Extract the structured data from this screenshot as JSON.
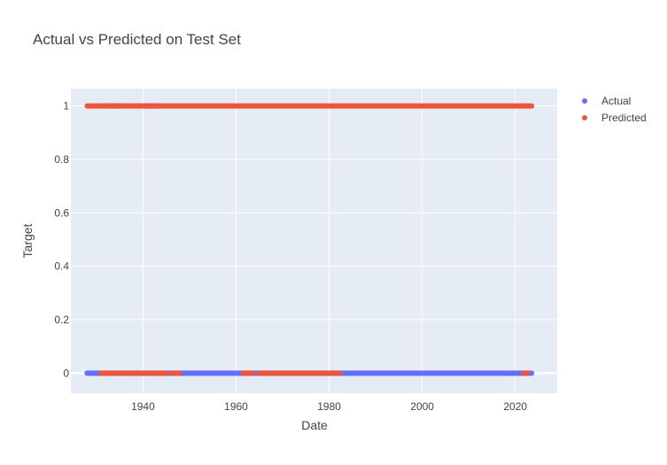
{
  "chart_data": {
    "type": "scatter",
    "title": "Actual vs Predicted on Test Set",
    "xlabel": "Date",
    "ylabel": "Target",
    "xlim": [
      1924.5,
      2029
    ],
    "ylim": [
      -0.075,
      1.065
    ],
    "x_ticks": [
      1940,
      1960,
      1980,
      2000,
      2020
    ],
    "x_tick_labels": [
      "1940",
      "1960",
      "1980",
      "2000",
      "2020"
    ],
    "y_ticks": [
      0,
      0.2,
      0.4,
      0.6,
      0.8,
      1
    ],
    "y_tick_labels": [
      "0",
      "0.2",
      "0.4",
      "0.6",
      "0.8",
      "1"
    ],
    "grid": true,
    "background": "#e5ecf6",
    "legend_position": "top-right",
    "x_range_data": [
      1928,
      2023.5
    ],
    "series": [
      {
        "name": "Actual",
        "color": "#636efa",
        "segments": [
          {
            "y": 0,
            "from": 1928,
            "to": 2023.5
          },
          {
            "y": 1,
            "from": 1932.5,
            "to": 1933.3
          },
          {
            "y": 1,
            "from": 1934.5,
            "to": 1935.1
          },
          {
            "y": 1,
            "from": 1940.5,
            "to": 1942.8
          }
        ]
      },
      {
        "name": "Predicted",
        "color": "#ef553b",
        "segments": [
          {
            "y": 1,
            "from": 1928,
            "to": 2023.5
          },
          {
            "y": 0,
            "from": 1931,
            "to": 1936.6
          },
          {
            "y": 0,
            "from": 1937.4,
            "to": 1945.3
          },
          {
            "y": 0,
            "from": 1946.5,
            "to": 1947.8
          },
          {
            "y": 0,
            "from": 1961.5,
            "to": 1963.6
          },
          {
            "y": 0,
            "from": 1965,
            "to": 1979.4
          },
          {
            "y": 0,
            "from": 1980,
            "to": 1980.8
          },
          {
            "y": 0,
            "from": 1981.5,
            "to": 1982.3
          },
          {
            "y": 0,
            "from": 2021.8,
            "to": 2022.6
          }
        ]
      }
    ]
  }
}
